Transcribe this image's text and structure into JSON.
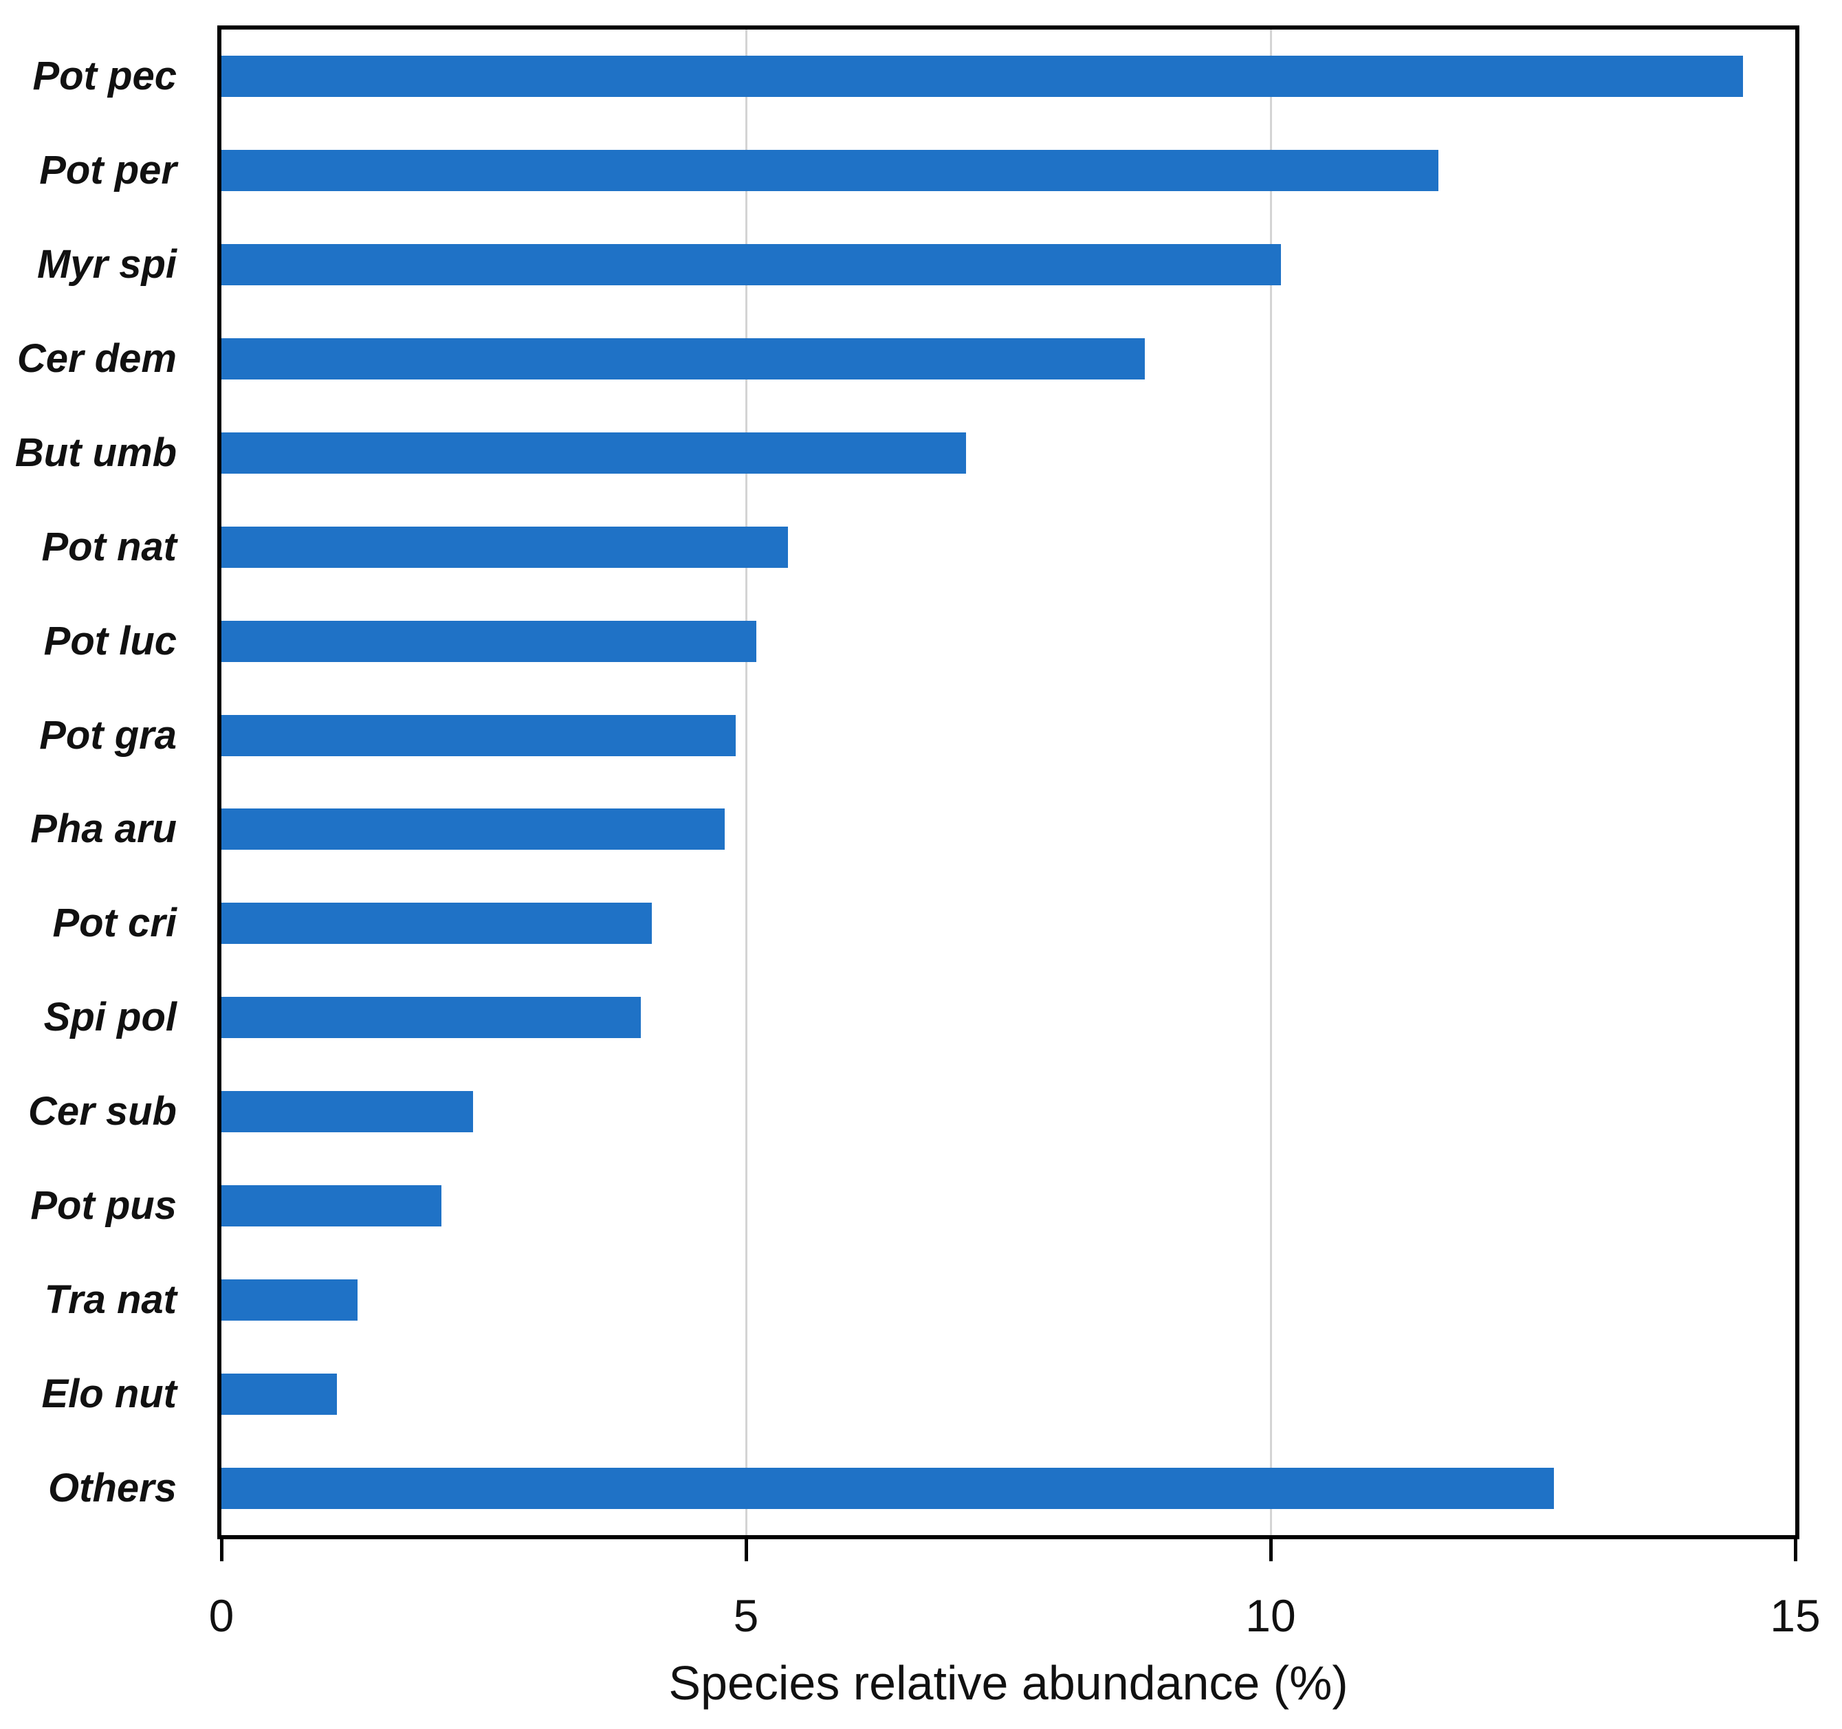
{
  "chart_data": {
    "type": "bar",
    "orientation": "horizontal",
    "title": "",
    "xlabel": "Species relative abundance (%)",
    "ylabel": "",
    "categories": [
      "Pot pec",
      "Pot per",
      "Myr spi",
      "Cer dem",
      "But umb",
      "Pot nat",
      "Pot luc",
      "Pot gra",
      "Pha aru",
      "Pot cri",
      "Spi pol",
      "Cer sub",
      "Pot pus",
      "Tra nat",
      "Elo nut",
      "Others"
    ],
    "values": [
      14.5,
      11.6,
      10.1,
      8.8,
      7.1,
      5.4,
      5.1,
      4.9,
      4.8,
      4.1,
      4.0,
      2.4,
      2.1,
      1.3,
      1.1,
      12.7
    ],
    "xlim": [
      0,
      15
    ],
    "xticks": [
      0,
      5,
      10,
      15
    ],
    "legend": "none",
    "grid": "vertical-gridlines-at-ticks",
    "bar_color": "#1F72C6",
    "gridline_color": "#D4D4D4",
    "axis_color": "#000000",
    "label_color": "#111111"
  }
}
